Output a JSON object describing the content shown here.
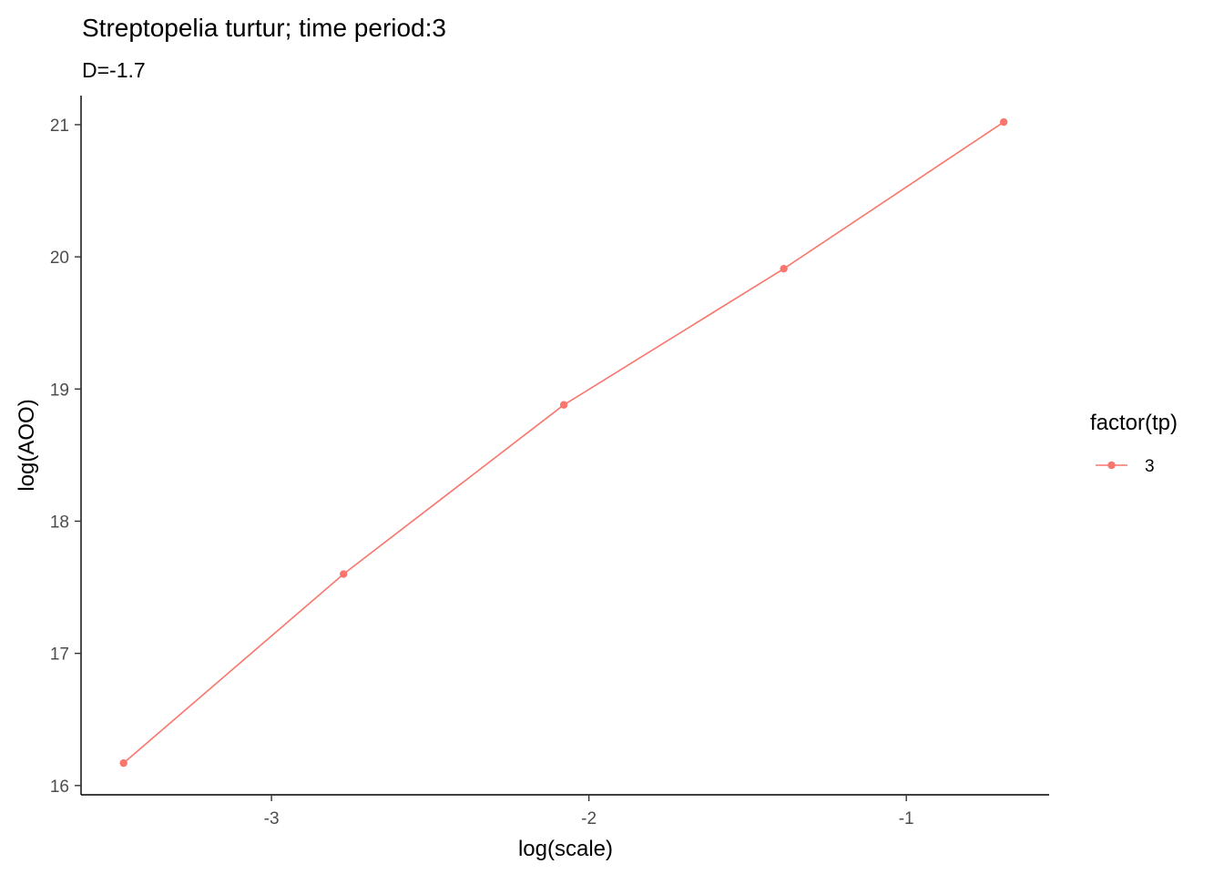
{
  "chart_data": {
    "type": "line",
    "title": "Streptopelia turtur; time period:3",
    "subtitle": "D=-1.7",
    "xlabel": "log(scale)",
    "ylabel": "log(AOO)",
    "xlim": [
      -3.6,
      -0.55
    ],
    "ylim": [
      15.93,
      21.22
    ],
    "x_ticks": [
      -3,
      -2,
      -1
    ],
    "x_tick_labels": [
      "-3",
      "-2",
      "-1"
    ],
    "y_ticks": [
      16,
      17,
      18,
      19,
      20,
      21
    ],
    "y_tick_labels": [
      "16",
      "17",
      "18",
      "19",
      "20",
      "21"
    ],
    "grid": false,
    "legend": {
      "title": "factor(tp)",
      "placement": "right",
      "entries": [
        "3"
      ]
    },
    "series": [
      {
        "name": "3",
        "color": "#F8766D",
        "x": [
          -3.466,
          -2.773,
          -2.079,
          -1.386,
          -0.693
        ],
        "y": [
          16.17,
          17.6,
          18.88,
          19.91,
          21.02
        ]
      }
    ]
  }
}
